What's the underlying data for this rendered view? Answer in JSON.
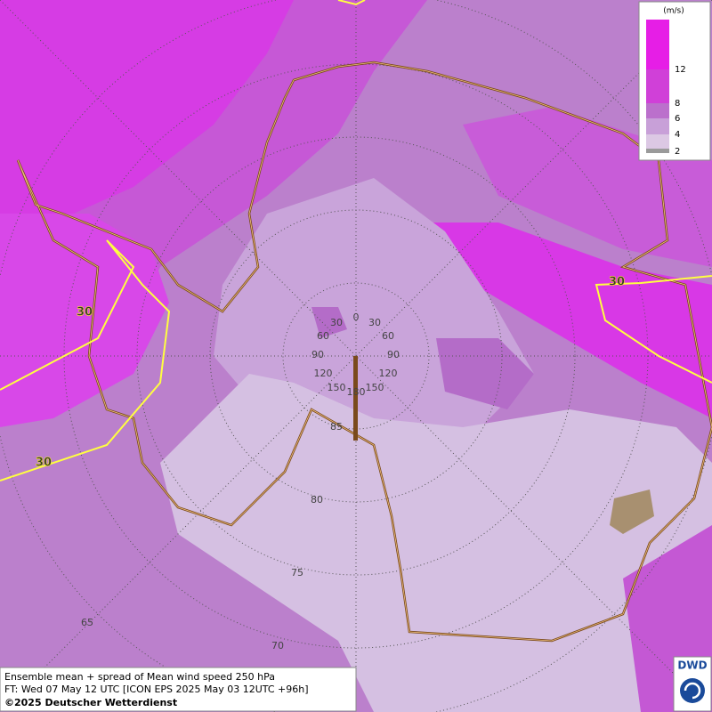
{
  "legend": {
    "unit": "(m/s)",
    "ticks": [
      "12",
      "8",
      "6",
      "4",
      "2"
    ]
  },
  "contour_labels": [
    "30",
    "30",
    "30"
  ],
  "longitude_labels": [
    "0",
    "30",
    "30",
    "60",
    "60",
    "90",
    "90",
    "120",
    "120",
    "150",
    "150",
    "180"
  ],
  "latitude_labels": [
    "85",
    "80",
    "75",
    "70",
    "65"
  ],
  "footer": {
    "line1": "Ensemble mean + spread of Mean wind speed 250 hPa",
    "line2": "FT: Wed 07 May 12 UTC [ICON EPS 2025 May 03 12UTC +96h]",
    "line3": "©2025 Deutscher Wetterdienst"
  },
  "logo": "DWD"
}
